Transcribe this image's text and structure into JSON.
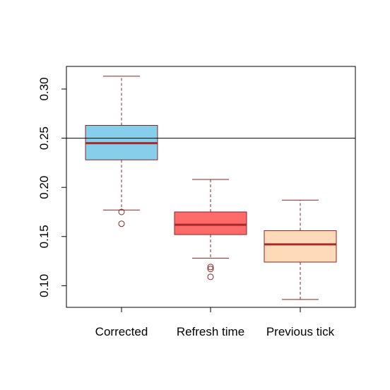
{
  "chart_data": {
    "type": "boxplot",
    "title": "",
    "xlabel": "",
    "ylabel": "",
    "ylim": [
      0.078,
      0.323
    ],
    "y_ticks": [
      0.1,
      0.15,
      0.2,
      0.25,
      0.3
    ],
    "y_tick_labels": [
      "0.10",
      "0.15",
      "0.20",
      "0.25",
      "0.30"
    ],
    "reference_line": 0.25,
    "grid": false,
    "legend": "none",
    "categories": [
      "Corrected",
      "Refresh time",
      "Previous tick"
    ],
    "boxes": [
      {
        "category": "Corrected",
        "whisker_low": 0.177,
        "q1": 0.228,
        "median": 0.245,
        "q3": 0.263,
        "whisker_high": 0.313,
        "outliers": [
          0.175,
          0.163
        ],
        "fill": "#87CEEB"
      },
      {
        "category": "Refresh time",
        "whisker_low": 0.128,
        "q1": 0.152,
        "median": 0.162,
        "q3": 0.175,
        "whisker_high": 0.208,
        "outliers": [
          0.119,
          0.117,
          0.109
        ],
        "fill": "#FF6A6A"
      },
      {
        "category": "Previous tick",
        "whisker_low": 0.086,
        "q1": 0.124,
        "median": 0.142,
        "q3": 0.156,
        "whisker_high": 0.187,
        "outliers": [],
        "fill": "#FFDAB9"
      }
    ],
    "colors": {
      "border": "#8B2323",
      "median": "#A52A2A",
      "axis": "#000000"
    }
  }
}
